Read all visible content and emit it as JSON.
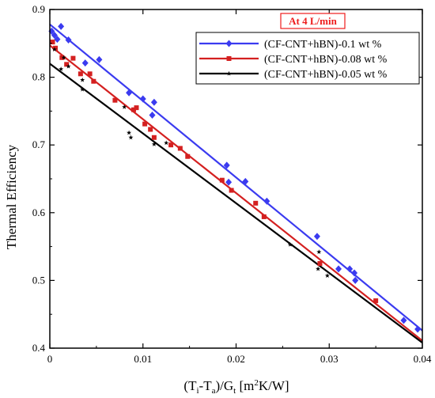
{
  "chart_data": {
    "type": "scatter",
    "title": "",
    "annotation": "At 4 L/min",
    "annotation_color": "#ee1c1c",
    "xlabel": {
      "main": "(T",
      "sub_i": "i",
      "mid": "-T",
      "sub_a": "a",
      "div": ")/G",
      "sub_t": "t",
      "unit": " [m",
      "sup2": "2",
      "unit_end": "K/W]"
    },
    "ylabel": "Thermal Efficiency",
    "xlim": [
      0,
      0.04
    ],
    "ylim": [
      0.4,
      0.9
    ],
    "x_ticks": [
      0,
      0.01,
      0.02,
      0.03,
      0.04
    ],
    "x_tick_labels": [
      "0",
      "0.01",
      "0.02",
      "0.03",
      "0.04"
    ],
    "y_ticks": [
      0.4,
      0.5,
      0.6,
      0.7,
      0.8,
      0.9
    ],
    "y_tick_labels": [
      "0.4",
      "0.5",
      "0.6",
      "0.7",
      "0.8",
      "0.9"
    ],
    "legend_position": "top-right",
    "series": [
      {
        "name": "(CF-CNT+hBN)-0.1 wt %",
        "color": "#3b3bf0",
        "marker": "diamond",
        "fit": {
          "intercept": 0.878,
          "slope": -11.3
        },
        "points": [
          [
            0.0002,
            0.868
          ],
          [
            0.0005,
            0.862
          ],
          [
            0.0008,
            0.856
          ],
          [
            0.0012,
            0.875
          ],
          [
            0.002,
            0.855
          ],
          [
            0.0038,
            0.821
          ],
          [
            0.0053,
            0.826
          ],
          [
            0.0085,
            0.777
          ],
          [
            0.01,
            0.768
          ],
          [
            0.011,
            0.744
          ],
          [
            0.0112,
            0.763
          ],
          [
            0.019,
            0.67
          ],
          [
            0.0192,
            0.645
          ],
          [
            0.021,
            0.646
          ],
          [
            0.0233,
            0.617
          ],
          [
            0.0287,
            0.565
          ],
          [
            0.031,
            0.517
          ],
          [
            0.0322,
            0.517
          ],
          [
            0.0327,
            0.511
          ],
          [
            0.0328,
            0.5
          ],
          [
            0.038,
            0.441
          ],
          [
            0.0395,
            0.428
          ]
        ]
      },
      {
        "name": "(CF-CNT+hBN)-0.08 wt %",
        "color": "#d42020",
        "marker": "square",
        "fit": {
          "intercept": 0.847,
          "slope": -10.9
        },
        "points": [
          [
            0.0003,
            0.852
          ],
          [
            0.0006,
            0.843
          ],
          [
            0.0013,
            0.829
          ],
          [
            0.0018,
            0.819
          ],
          [
            0.0025,
            0.828
          ],
          [
            0.0033,
            0.805
          ],
          [
            0.0043,
            0.805
          ],
          [
            0.0047,
            0.794
          ],
          [
            0.007,
            0.766
          ],
          [
            0.009,
            0.752
          ],
          [
            0.0093,
            0.755
          ],
          [
            0.0102,
            0.731
          ],
          [
            0.0108,
            0.723
          ],
          [
            0.0112,
            0.711
          ],
          [
            0.013,
            0.7
          ],
          [
            0.014,
            0.695
          ],
          [
            0.0148,
            0.683
          ],
          [
            0.0185,
            0.648
          ],
          [
            0.0195,
            0.633
          ],
          [
            0.0221,
            0.614
          ],
          [
            0.023,
            0.594
          ],
          [
            0.029,
            0.525
          ],
          [
            0.035,
            0.47
          ]
        ]
      },
      {
        "name": "(CF-CNT+hBN)-0.05 wt %",
        "color": "#000000",
        "marker": "star",
        "fit": {
          "intercept": 0.82,
          "slope": -10.3
        },
        "points": [
          [
            0.0005,
            0.841
          ],
          [
            0.0012,
            0.812
          ],
          [
            0.0015,
            0.829
          ],
          [
            0.002,
            0.816
          ],
          [
            0.0035,
            0.782
          ],
          [
            0.0035,
            0.796
          ],
          [
            0.008,
            0.756
          ],
          [
            0.0085,
            0.718
          ],
          [
            0.0087,
            0.711
          ],
          [
            0.0112,
            0.701
          ],
          [
            0.0125,
            0.703
          ],
          [
            0.0258,
            0.553
          ],
          [
            0.0288,
            0.517
          ],
          [
            0.0289,
            0.542
          ],
          [
            0.0298,
            0.507
          ]
        ]
      }
    ]
  }
}
